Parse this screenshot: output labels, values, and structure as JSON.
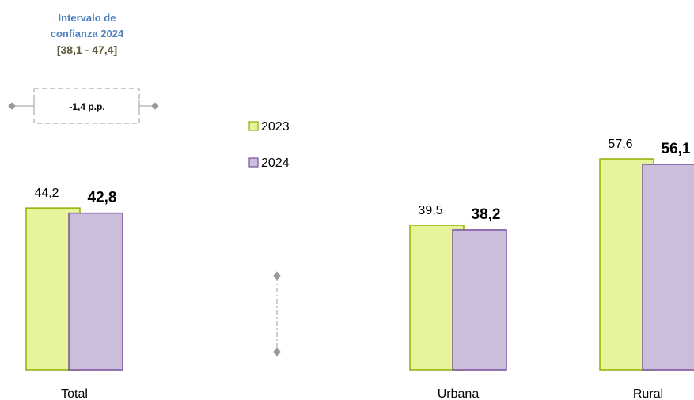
{
  "chart_data": {
    "type": "bar",
    "categories": [
      "Total",
      "Urbana",
      "Rural"
    ],
    "series": [
      {
        "name": "2023",
        "color": "#e6f59a",
        "values": [
          44.2,
          39.5,
          57.6
        ],
        "value_labels": [
          "44,2",
          "39,5",
          "57,6"
        ]
      },
      {
        "name": "2024",
        "color": "#cbbedd",
        "values": [
          42.8,
          38.2,
          56.1
        ],
        "value_labels": [
          "42,8",
          "38,2",
          "56,1"
        ]
      }
    ],
    "annotations": {
      "interval_title": [
        "Intervalo de",
        "confianza 2024"
      ],
      "interval_range": "[38,1 - 47,4]",
      "difference": "-1,4 p.p."
    }
  }
}
